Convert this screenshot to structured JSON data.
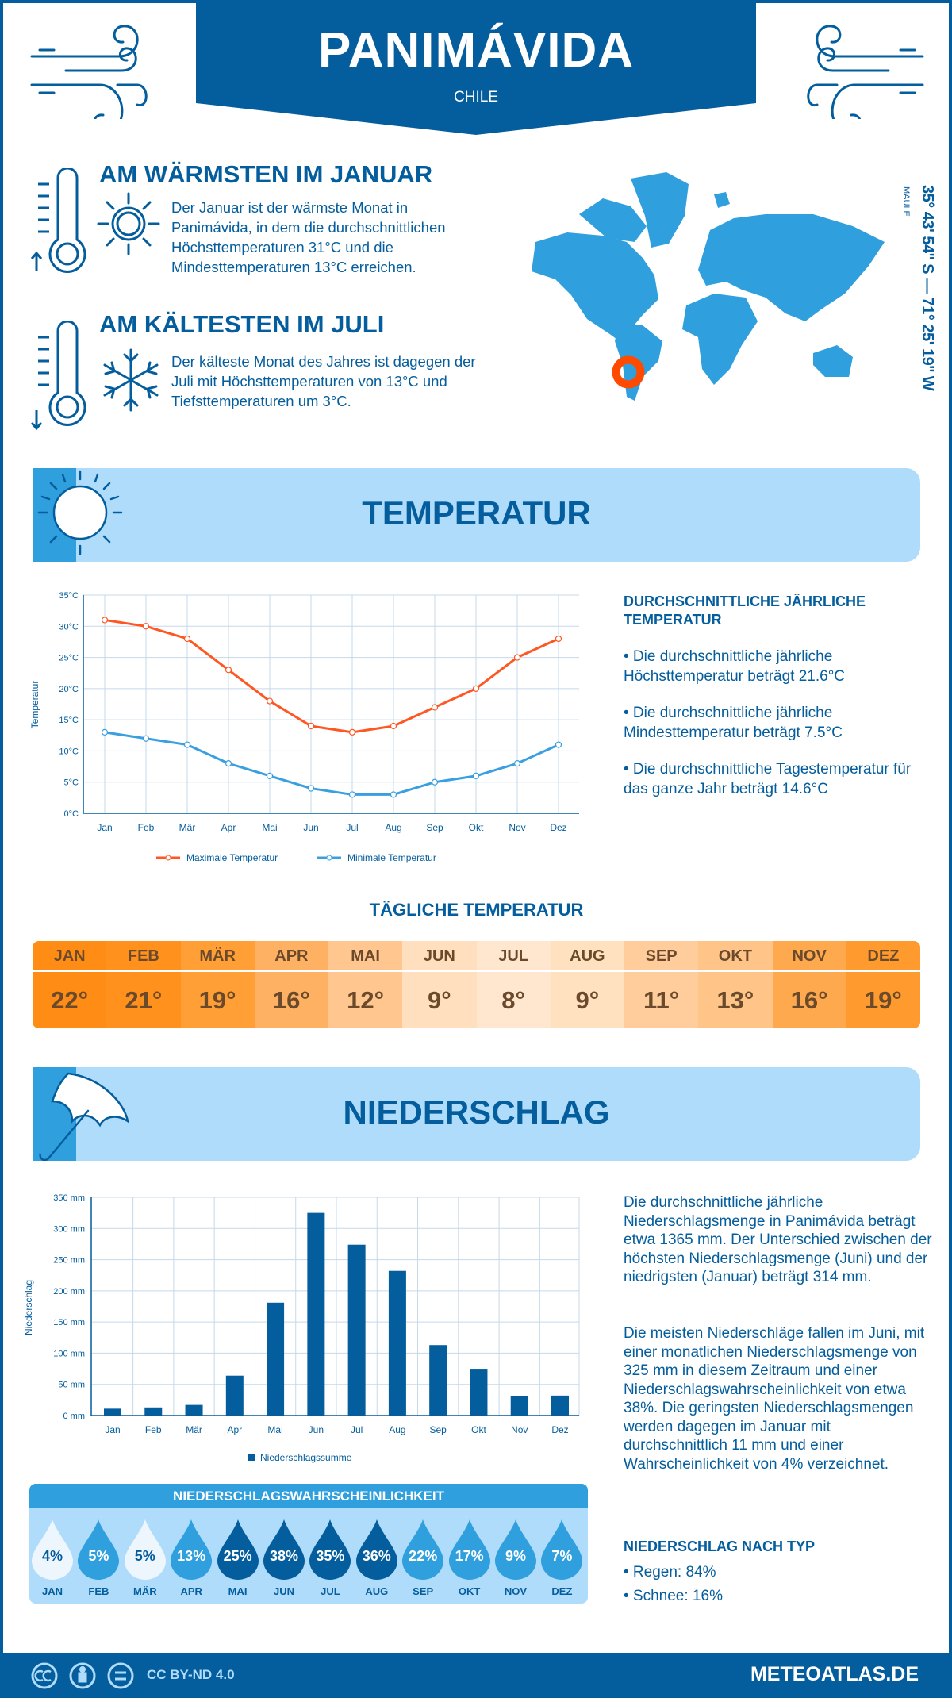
{
  "header": {
    "title": "PANIMÁVIDA",
    "country": "CHILE"
  },
  "location": {
    "region": "MAULE",
    "coords": "35° 43' 54'' S — 71° 25' 19'' W"
  },
  "warmest": {
    "heading": "AM WÄRMSTEN IM JANUAR",
    "text": "Der Januar ist der wärmste Monat in Panimávida, in dem die durchschnittlichen Höchsttemperaturen 31°C und die Mindesttemperaturen 13°C erreichen."
  },
  "coldest": {
    "heading": "AM KÄLTESTEN IM JULI",
    "text": "Der kälteste Monat des Jahres ist dagegen der Juli mit Höchsttemperaturen von 13°C und Tiefsttemperaturen um 3°C."
  },
  "temperature": {
    "title": "TEMPERATUR",
    "annual_heading": "DURCHSCHNITTLICHE JÄHRLICHE TEMPERATUR",
    "bullets": [
      "• Die durchschnittliche jährliche Höchsttemperatur beträgt 21.6°C",
      "• Die durchschnittliche jährliche Mindesttemperatur beträgt 7.5°C",
      "• Die durchschnittliche Tagestemperatur für das ganze Jahr beträgt 14.6°C"
    ]
  },
  "daily": {
    "title": "TÄGLICHE TEMPERATUR",
    "months": [
      "JAN",
      "FEB",
      "MÄR",
      "APR",
      "MAI",
      "JUN",
      "JUL",
      "AUG",
      "SEP",
      "OKT",
      "NOV",
      "DEZ"
    ],
    "values": [
      "22°",
      "21°",
      "19°",
      "16°",
      "12°",
      "9°",
      "8°",
      "9°",
      "11°",
      "13°",
      "16°",
      "19°"
    ],
    "colors": [
      "#ff8c14",
      "#ff911c",
      "#ff9f35",
      "#ffb163",
      "#ffc78f",
      "#ffdfbd",
      "#ffe7cf",
      "#ffe0bf",
      "#ffcd9b",
      "#ffc488",
      "#ffa94f",
      "#ff9a2e"
    ]
  },
  "precipitation": {
    "title": "NIEDERSCHLAG",
    "paragraphs": [
      "Die durchschnittliche jährliche Niederschlagsmenge in Panimávida beträgt etwa 1365 mm. Der Unterschied zwischen der höchsten Niederschlagsmenge (Juni) und der niedrigsten (Januar) beträgt 314 mm.",
      "Die meisten Niederschläge fallen im Juni, mit einer monatlichen Niederschlagsmenge von 325 mm in diesem Zeitraum und einer Niederschlagswahrscheinlichkeit von etwa 38%. Die geringsten Niederschlagsmengen werden dagegen im Januar mit durchschnittlich 11 mm und einer Wahrscheinlichkeit von 4% verzeichnet."
    ],
    "type_heading": "NIEDERSCHLAG NACH TYP",
    "types": [
      "• Regen: 84%",
      "• Schnee: 16%"
    ]
  },
  "probability": {
    "title": "NIEDERSCHLAGSWAHRSCHEINLICHKEIT",
    "months": [
      "JAN",
      "FEB",
      "MÄR",
      "APR",
      "MAI",
      "JUN",
      "JUL",
      "AUG",
      "SEP",
      "OKT",
      "NOV",
      "DEZ"
    ],
    "values": [
      "4%",
      "5%",
      "5%",
      "13%",
      "25%",
      "38%",
      "35%",
      "36%",
      "22%",
      "17%",
      "9%",
      "7%"
    ]
  },
  "colors": {
    "dark": "#045d9c",
    "medium": "#2f9fdd",
    "light": "#b0dcfb",
    "max": "#fe5722",
    "min": "#3a9fe0"
  },
  "chart_data": [
    {
      "type": "line",
      "title": "",
      "ylabel": "Temperatur",
      "ylim": [
        0,
        35
      ],
      "yticks": [
        "0°C",
        "5°C",
        "10°C",
        "15°C",
        "20°C",
        "25°C",
        "30°C",
        "35°C"
      ],
      "categories": [
        "Jan",
        "Feb",
        "Mär",
        "Apr",
        "Mai",
        "Jun",
        "Jul",
        "Aug",
        "Sep",
        "Okt",
        "Nov",
        "Dez"
      ],
      "series": [
        {
          "name": "Maximale Temperatur",
          "values": [
            31,
            30,
            28,
            23,
            18,
            14,
            13,
            14,
            17,
            20,
            25,
            28
          ]
        },
        {
          "name": "Minimale Temperatur",
          "values": [
            13,
            12,
            11,
            8,
            6,
            4,
            3,
            3,
            5,
            6,
            8,
            11
          ]
        }
      ],
      "grid": true,
      "legend": "bottom"
    },
    {
      "type": "bar",
      "title": "",
      "ylabel": "Niederschlag",
      "ylim": [
        0,
        350
      ],
      "yticks": [
        "0 mm",
        "50 mm",
        "100 mm",
        "150 mm",
        "200 mm",
        "250 mm",
        "300 mm",
        "350 mm"
      ],
      "categories": [
        "Jan",
        "Feb",
        "Mär",
        "Apr",
        "Mai",
        "Jun",
        "Jul",
        "Aug",
        "Sep",
        "Okt",
        "Nov",
        "Dez"
      ],
      "series": [
        {
          "name": "Niederschlagssumme",
          "values": [
            11,
            13,
            17,
            64,
            181,
            325,
            274,
            232,
            113,
            75,
            31,
            32
          ]
        }
      ],
      "grid": true,
      "legend": "bottom"
    }
  ],
  "footer": {
    "license": "CC BY-ND 4.0",
    "brand": "METEOATLAS.DE"
  }
}
